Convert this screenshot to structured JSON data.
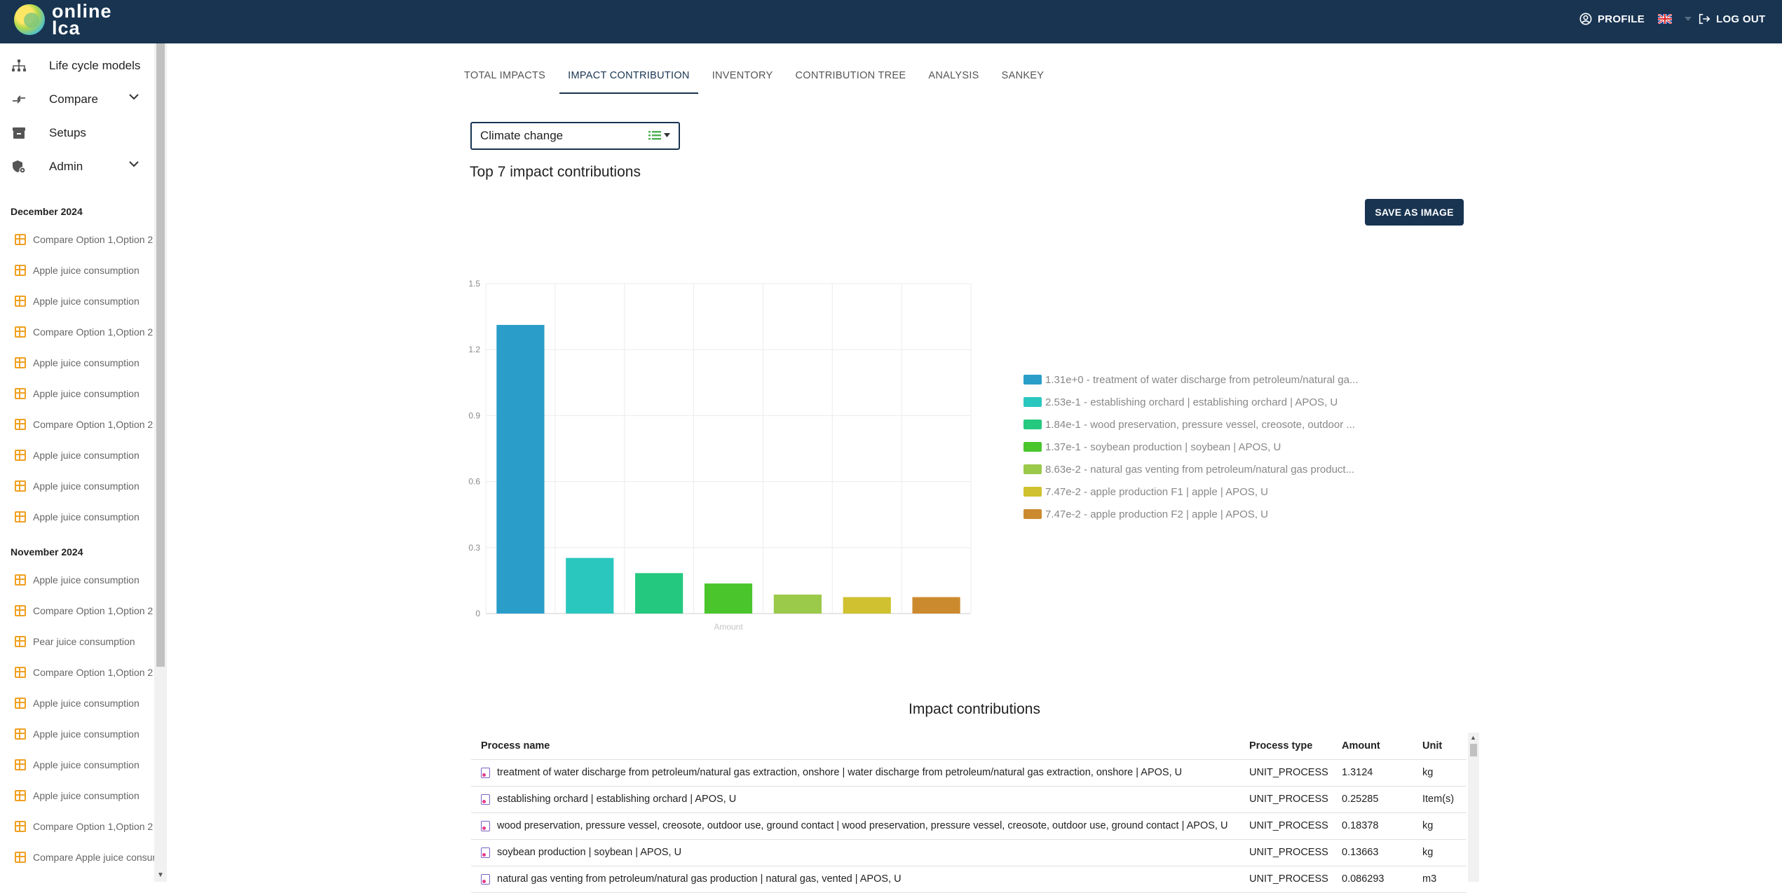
{
  "app": {
    "logo_line1": "online",
    "logo_line2": "lca"
  },
  "topbar": {
    "profile": "PROFILE",
    "logout": "LOG OUT",
    "language_icon": "uk-flag-icon"
  },
  "sidebar": {
    "nav": [
      {
        "label": "Life cycle models",
        "icon": "hierarchy-icon"
      },
      {
        "label": "Compare",
        "icon": "compare-arrows-icon",
        "expandable": true
      },
      {
        "label": "Setups",
        "icon": "archive-box-icon"
      },
      {
        "label": "Admin",
        "icon": "admin-settings-icon",
        "expandable": true
      }
    ],
    "groups": [
      {
        "month": "December 2024",
        "items": [
          "Compare Option 1,Option 2",
          "Apple juice consumption",
          "Apple juice consumption",
          "Compare Option 1,Option 2",
          "Apple juice consumption",
          "Apple juice consumption",
          "Compare Option 1,Option 2",
          "Apple juice consumption",
          "Apple juice consumption",
          "Apple juice consumption"
        ]
      },
      {
        "month": "November 2024",
        "items": [
          "Apple juice consumption",
          "Compare Option 1,Option 2",
          "Pear juice consumption",
          "Compare Option 1,Option 2",
          "Apple juice consumption",
          "Apple juice consumption",
          "Apple juice consumption",
          "Apple juice consumption",
          "Compare Option 1,Option 2",
          "Compare Apple juice consumption"
        ]
      }
    ]
  },
  "tabs": [
    {
      "label": "TOTAL IMPACTS",
      "active": false
    },
    {
      "label": "IMPACT CONTRIBUTION",
      "active": true
    },
    {
      "label": "INVENTORY",
      "active": false
    },
    {
      "label": "CONTRIBUTION TREE",
      "active": false
    },
    {
      "label": "ANALYSIS",
      "active": false
    },
    {
      "label": "SANKEY",
      "active": false
    }
  ],
  "impact_select": {
    "value": "Climate change"
  },
  "chart_section": {
    "title": "Top 7 impact contributions",
    "save_button": "SAVE AS IMAGE"
  },
  "chart_data": {
    "type": "bar",
    "title": "",
    "xlabel": "Amount",
    "ylabel": "",
    "ylim": [
      0,
      1.5
    ],
    "yticks": [
      "0",
      "0.3",
      "0.6",
      "0.9",
      "1.2",
      "1.5"
    ],
    "values": [
      1.3124,
      0.25285,
      0.18378,
      0.13663,
      0.086293,
      0.0747,
      0.0747
    ],
    "colors": [
      "#2a9dc9",
      "#2ac7bf",
      "#25c87f",
      "#4ac62c",
      "#9bc94a",
      "#cfc130",
      "#cc8a2e"
    ],
    "legend": [
      "1.31e+0 - treatment of water discharge from petroleum/natural ga...",
      "2.53e-1 - establishing orchard | establishing orchard | APOS, U",
      "1.84e-1 - wood preservation, pressure vessel, creosote, outdoor ...",
      "1.37e-1 - soybean production | soybean | APOS, U",
      "8.63e-2 - natural gas venting from petroleum/natural gas product...",
      "7.47e-2 - apple production F1 | apple | APOS, U",
      "7.47e-2 - apple production F2 | apple | APOS, U"
    ]
  },
  "table": {
    "title": "Impact contributions",
    "headers": [
      "Process name",
      "Process type",
      "Amount",
      "Unit"
    ],
    "rows": [
      [
        "treatment of water discharge from petroleum/natural gas extraction, onshore | water discharge from petroleum/natural gas extraction, onshore | APOS, U",
        "UNIT_PROCESS",
        "1.3124",
        "kg"
      ],
      [
        "establishing orchard | establishing orchard | APOS, U",
        "UNIT_PROCESS",
        "0.25285",
        "Item(s)"
      ],
      [
        "wood preservation, pressure vessel, creosote, outdoor use, ground contact | wood preservation, pressure vessel, creosote, outdoor use, ground contact | APOS, U",
        "UNIT_PROCESS",
        "0.18378",
        "kg"
      ],
      [
        "soybean production | soybean | APOS, U",
        "UNIT_PROCESS",
        "0.13663",
        "kg"
      ],
      [
        "natural gas venting from petroleum/natural gas production | natural gas, vented | APOS, U",
        "UNIT_PROCESS",
        "0.086293",
        "m3"
      ]
    ]
  }
}
